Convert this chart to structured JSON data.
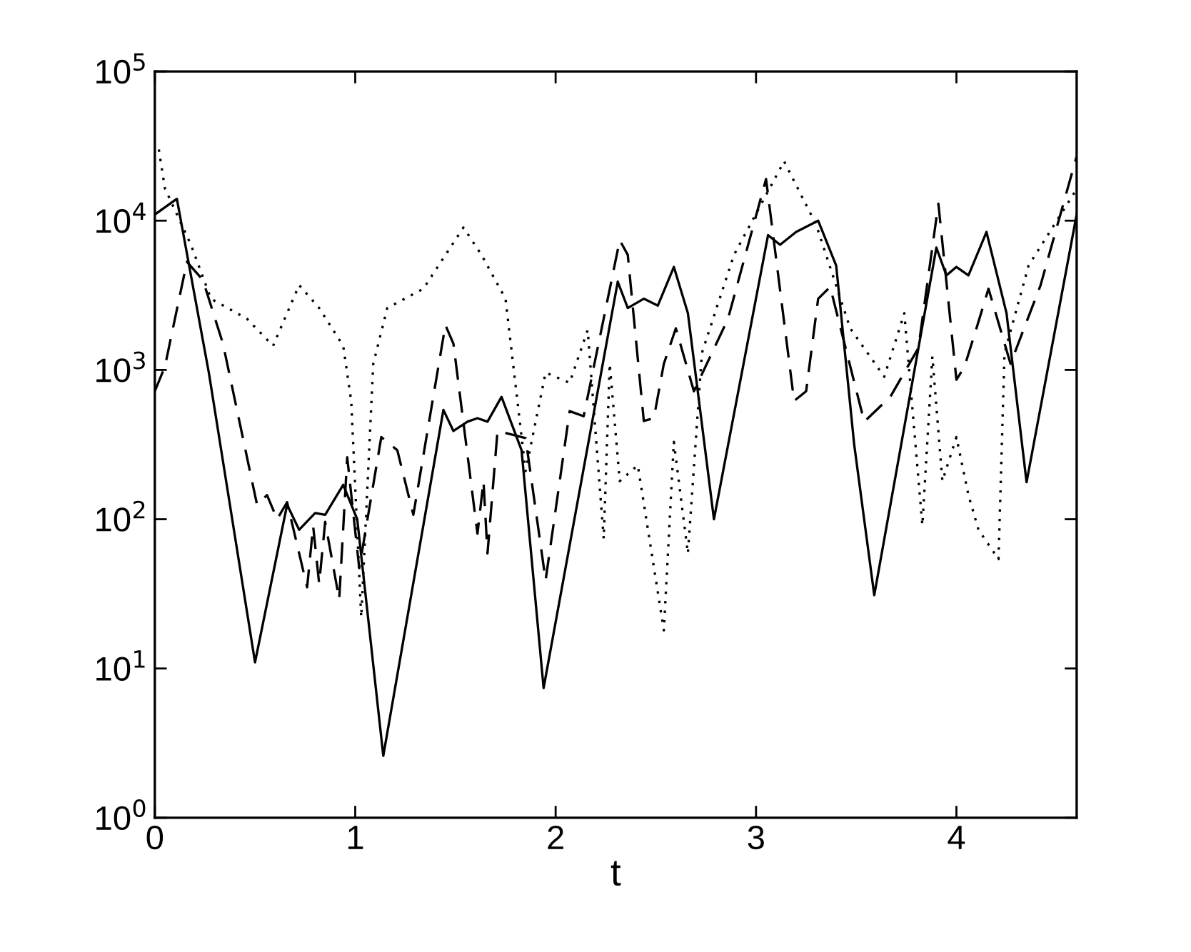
{
  "chart_data": {
    "type": "line",
    "xlabel": "t",
    "log": "y",
    "grid": false,
    "legend": false,
    "marker": "none",
    "xlim": [
      0,
      4.6
    ],
    "ylim": [
      1,
      100000
    ],
    "xticks": [
      0,
      1,
      2,
      3,
      4
    ],
    "yticks": [
      {
        "value": 1,
        "label": "10$^{0}$"
      },
      {
        "value": 10,
        "label": "10$^{1}$"
      },
      {
        "value": 100,
        "label": "10$^{2}$"
      },
      {
        "value": 1000,
        "label": "10$^{3}$"
      },
      {
        "value": 10000,
        "label": "10$^{4}$"
      },
      {
        "value": 100000,
        "label": "10$^{5}$"
      }
    ],
    "series": [
      {
        "color": "#000000",
        "line_style": "solid",
        "x": [
          0,
          0.11,
          0.27,
          0.5,
          0.66,
          0.72,
          0.8,
          0.85,
          0.94,
          1.01,
          1.14,
          1.44,
          1.49,
          1.56,
          1.61,
          1.66,
          1.73,
          1.83,
          1.94,
          2.31,
          2.36,
          2.44,
          2.51,
          2.59,
          2.66,
          2.79,
          3.06,
          3.12,
          3.2,
          3.31,
          3.4,
          3.49,
          3.59,
          3.9,
          3.95,
          4.0,
          4.06,
          4.15,
          4.25,
          4.35,
          4.6
        ],
        "values": [
          11000,
          14000,
          950,
          11,
          125,
          85,
          110,
          107,
          170,
          100,
          2.6,
          540,
          390,
          450,
          475,
          450,
          660,
          290,
          7.4,
          3900,
          2600,
          3000,
          2700,
          4900,
          2400,
          100,
          8000,
          6900,
          8400,
          10000,
          5000,
          315,
          31,
          6600,
          4300,
          4900,
          4300,
          8400,
          2400,
          177,
          11000
        ]
      },
      {
        "color": "#000000",
        "line_style": "dashed",
        "x": [
          0,
          0.05,
          0.16,
          0.24,
          0.34,
          0.51,
          0.56,
          0.61,
          0.66,
          0.76,
          0.79,
          0.82,
          0.85,
          0.92,
          0.96,
          1.02,
          1.13,
          1.21,
          1.29,
          1.45,
          1.49,
          1.61,
          1.64,
          1.66,
          1.71,
          1.85,
          1.95,
          2.07,
          2.14,
          2.32,
          2.36,
          2.44,
          2.49,
          2.54,
          2.6,
          2.69,
          2.86,
          3.05,
          3.19,
          3.25,
          3.31,
          3.37,
          3.54,
          3.67,
          3.81,
          3.91,
          4.0,
          4.04,
          4.1,
          4.16,
          4.27,
          4.42,
          4.6
        ],
        "values": [
          720,
          1050,
          5300,
          4000,
          1500,
          125,
          145,
          100,
          130,
          35,
          90,
          37,
          96,
          29,
          260,
          47,
          355,
          290,
          107,
          2000,
          1500,
          80,
          180,
          59,
          390,
          350,
          39,
          530,
          490,
          7400,
          5900,
          455,
          475,
          1100,
          1900,
          720,
          2200,
          19000,
          620,
          720,
          3000,
          3600,
          450,
          660,
          1400,
          13000,
          860,
          1050,
          1900,
          3500,
          1100,
          3700,
          27000
        ]
      },
      {
        "color": "#000000",
        "line_style": "dotted",
        "x": [
          0.02,
          0.05,
          0.18,
          0.28,
          0.46,
          0.59,
          0.66,
          0.72,
          0.82,
          0.94,
          0.98,
          1.03,
          1.09,
          1.16,
          1.34,
          1.54,
          1.63,
          1.75,
          1.85,
          1.95,
          2.07,
          2.16,
          2.24,
          2.27,
          2.32,
          2.41,
          2.54,
          2.59,
          2.66,
          2.73,
          2.89,
          3.14,
          3.3,
          3.47,
          3.64,
          3.74,
          3.83,
          3.88,
          3.93,
          4.0,
          4.06,
          4.11,
          4.21,
          4.24,
          4.36,
          4.59
        ],
        "values": [
          30000,
          16500,
          6900,
          3000,
          2200,
          1450,
          2400,
          3700,
          2600,
          1450,
          620,
          22,
          1100,
          2600,
          3500,
          9000,
          5900,
          3000,
          210,
          960,
          820,
          1850,
          74,
          1100,
          180,
          230,
          18,
          330,
          59,
          1300,
          5900,
          25000,
          9400,
          1900,
          900,
          2400,
          91,
          1230,
          180,
          355,
          145,
          85,
          54,
          1300,
          5000,
          15500
        ]
      }
    ]
  }
}
